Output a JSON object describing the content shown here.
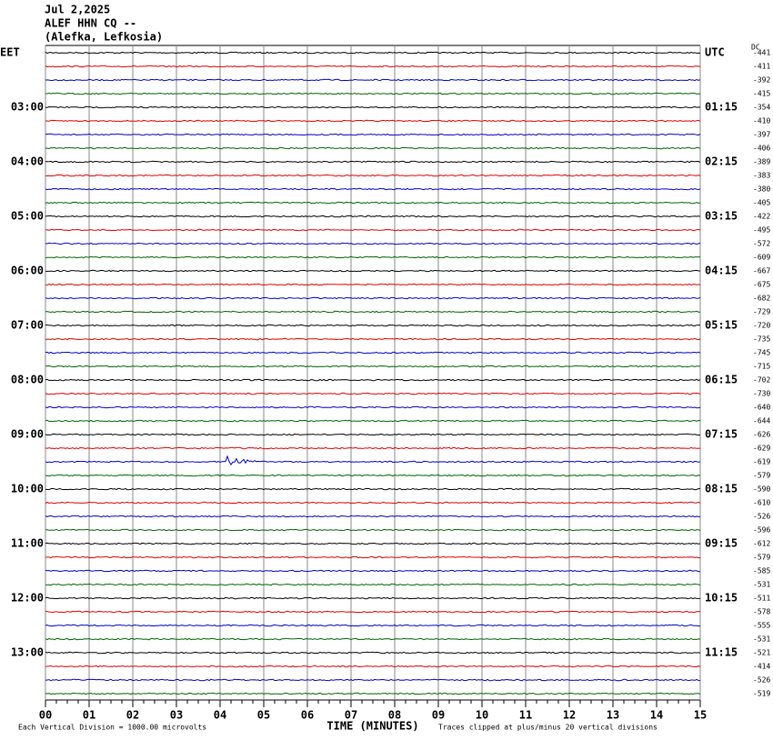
{
  "header": {
    "lines": [
      "Jul 2,2025",
      "ALEF HHN CQ --",
      "(Alefka, Lefkosia)"
    ]
  },
  "left_labels": [
    "EET",
    "03:00",
    "04:00",
    "05:00",
    "06:00",
    "07:00",
    "08:00",
    "09:00",
    "10:00",
    "11:00",
    "12:00",
    "13:00"
  ],
  "right_labels": [
    "UTC",
    "01:15",
    "02:15",
    "03:15",
    "04:15",
    "05:15",
    "06:15",
    "07:15",
    "08:15",
    "09:15",
    "10:15",
    "11:15"
  ],
  "dc_label": "DC",
  "dc_values": [
    -441,
    -411,
    -392,
    -415,
    -354,
    -410,
    -397,
    -406,
    -389,
    -383,
    -380,
    -405,
    -422,
    -495,
    -572,
    -609,
    -667,
    -675,
    -682,
    -729,
    -720,
    -735,
    -745,
    -715,
    -702,
    -730,
    -640,
    -644,
    -626,
    -629,
    -619,
    -579,
    -590,
    -610,
    -526,
    -596,
    -612,
    -579,
    -585,
    -531,
    -511,
    -578,
    -555,
    -531,
    -521,
    -414,
    -526,
    -519
  ],
  "trace_colors": [
    "#000000",
    "#e00000",
    "#0000c8",
    "#006400"
  ],
  "x_axis": {
    "title": "TIME (MINUTES)",
    "ticks": [
      {
        "value": 0,
        "label": "00"
      },
      {
        "value": 1,
        "label": "01"
      },
      {
        "value": 2,
        "label": "02"
      },
      {
        "value": 3,
        "label": "03"
      },
      {
        "value": 4,
        "label": "04"
      },
      {
        "value": 5,
        "label": "05"
      },
      {
        "value": 6,
        "label": "06"
      },
      {
        "value": 7,
        "label": "07"
      },
      {
        "value": 8,
        "label": "08"
      },
      {
        "value": 9,
        "label": "09"
      },
      {
        "value": 10,
        "label": "10"
      },
      {
        "value": 11,
        "label": "11"
      },
      {
        "value": 12,
        "label": "12"
      },
      {
        "value": 13,
        "label": "13"
      },
      {
        "value": 14,
        "label": "14"
      },
      {
        "value": 15,
        "label": "15"
      }
    ]
  },
  "footer": {
    "left": "Each Vertical Division = 1000.00 microvolts",
    "right": "Traces clipped at plus/minus 20 vertical divisions"
  }
}
